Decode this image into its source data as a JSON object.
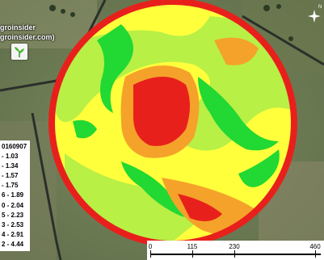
{
  "brand": {
    "line1": "groinsider",
    "line2": "groinsider.com)",
    "logo_icon": "sprout-icon"
  },
  "legend": {
    "title": "0160907",
    "rows": [
      "- 1.03",
      "- 1.34",
      "- 1.57",
      "- 1.75",
      "6 - 1.89",
      "0 - 2.04",
      "5 - 2.23",
      "3 - 2.53",
      "4 - 2.91",
      "2 - 4.44"
    ]
  },
  "scale": {
    "ticks": [
      "0",
      "115",
      "230",
      "460"
    ]
  },
  "north": {
    "label": "N",
    "icon": "north-arrow-icon"
  },
  "colors": {
    "low": "#e8201c",
    "mid_low": "#f5a22a",
    "mid": "#ffff3c",
    "mid_high": "#b8f046",
    "high": "#22d832"
  }
}
